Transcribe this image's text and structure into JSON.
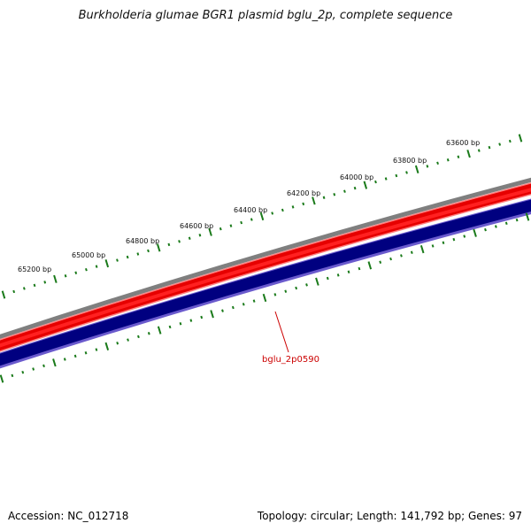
{
  "title": "Burkholderia glumae BGR1 plasmid bglu_2p, complete sequence",
  "footer": {
    "accession": "Accession: NC_012718",
    "summary": "Topology: circular; Length: 141,792 bp; Genes: 97"
  },
  "ruler": {
    "labels": [
      "65200 bp",
      "65000 bp",
      "64800 bp",
      "64600 bp",
      "64400 bp",
      "64200 bp",
      "64000 bp",
      "63800 bp",
      "63600 bp"
    ]
  },
  "gene": {
    "label": "bglu_2p0590"
  },
  "colors": {
    "backbone": "#7f7f7f",
    "forward_strand": "#e60000",
    "forward_light": "#ff8080",
    "reverse_strand": "#000080",
    "reverse_edge": "#6a5acd",
    "ticks": "#1a7a1a",
    "gene_label": "#cc0000"
  }
}
